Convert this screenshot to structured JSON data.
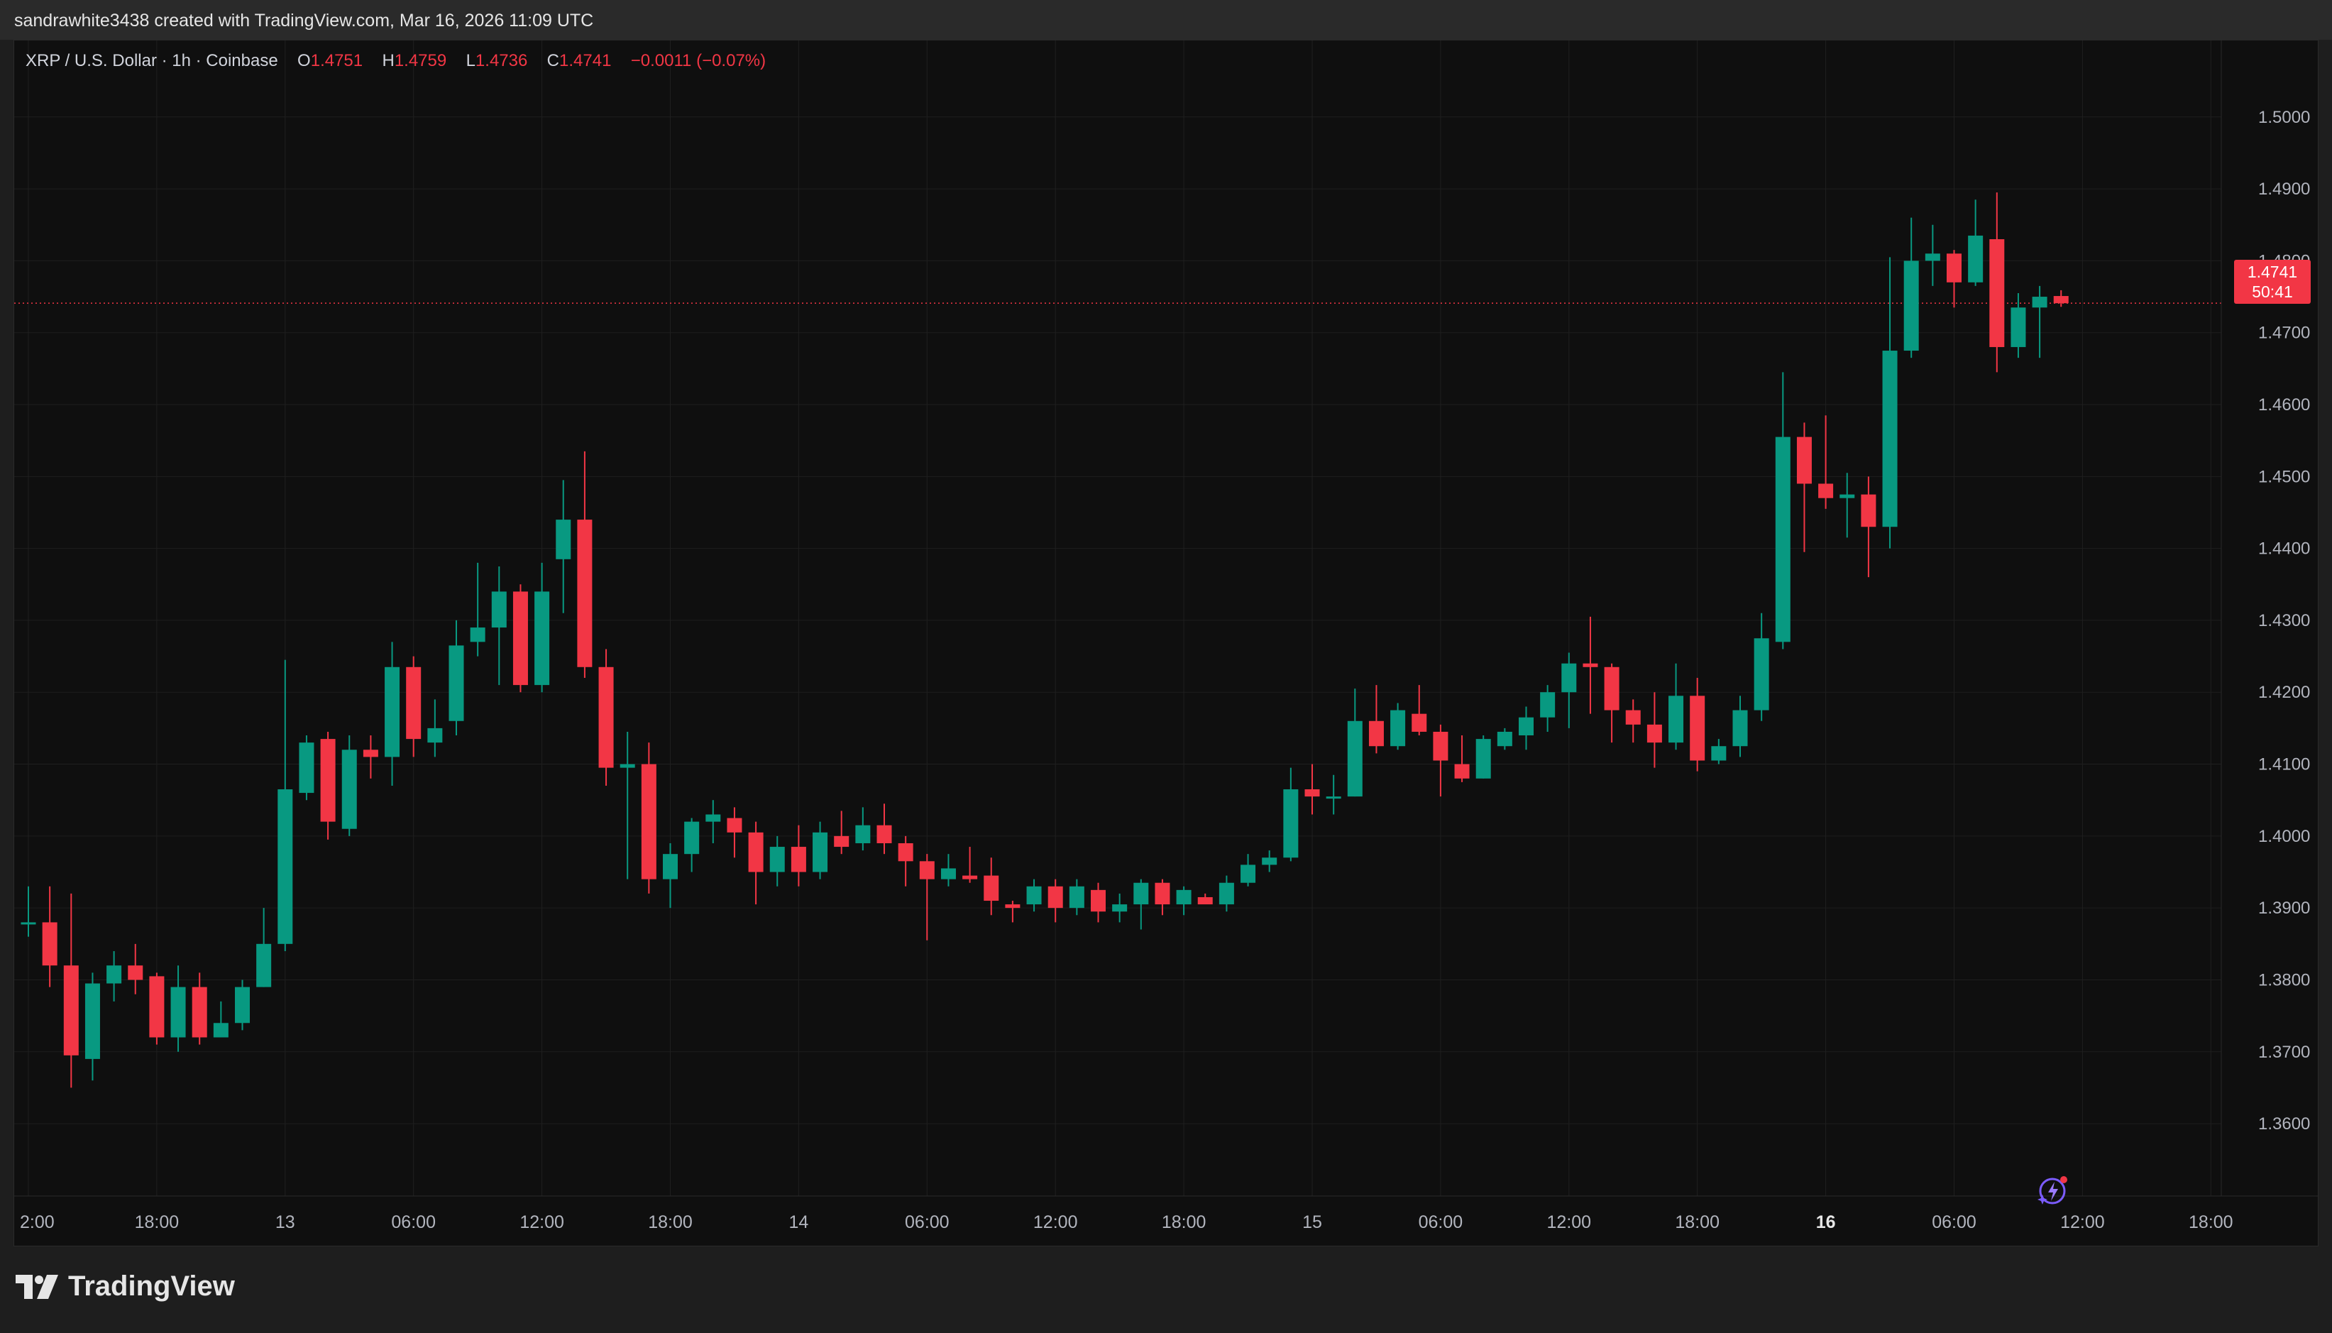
{
  "header": {
    "attribution": "sandrawhite3438 created with TradingView.com, Mar 16, 2026 11:09 UTC"
  },
  "legend": {
    "symbol": "XRP / U.S. Dollar · 1h · Coinbase",
    "open_label": "O",
    "open": "1.4751",
    "high_label": "H",
    "high": "1.4759",
    "low_label": "L",
    "low": "1.4736",
    "close_label": "C",
    "close": "1.4741",
    "change": "−0.0011 (−0.07%)"
  },
  "price_tag": {
    "price": "1.4741",
    "countdown": "50:41"
  },
  "brand": {
    "name": "TradingView"
  },
  "icons": {
    "logo": "tradingview-logo-icon",
    "bolt": "lightning-icon"
  },
  "colors": {
    "up": "#089981",
    "down": "#f23645",
    "background": "#0f0f0f",
    "grid": "#1f1f1f"
  },
  "chart_data": {
    "type": "candlestick",
    "timeframe": "1h",
    "ylim": [
      1.353,
      1.506
    ],
    "y_ticks": [
      "1.5000",
      "1.4900",
      "1.4800",
      "1.4700",
      "1.4600",
      "1.4500",
      "1.4400",
      "1.4300",
      "1.4200",
      "1.4100",
      "1.4000",
      "1.3900",
      "1.3800",
      "1.3700",
      "1.3600"
    ],
    "x_ticks": [
      {
        "label": "2:00",
        "index": 0
      },
      {
        "label": "18:00",
        "index": 6
      },
      {
        "label": "13",
        "index": 12
      },
      {
        "label": "06:00",
        "index": 18
      },
      {
        "label": "12:00",
        "index": 24
      },
      {
        "label": "18:00",
        "index": 30
      },
      {
        "label": "14",
        "index": 36
      },
      {
        "label": "06:00",
        "index": 42
      },
      {
        "label": "12:00",
        "index": 48
      },
      {
        "label": "18:00",
        "index": 54
      },
      {
        "label": "15",
        "index": 60
      },
      {
        "label": "06:00",
        "index": 66
      },
      {
        "label": "12:00",
        "index": 72
      },
      {
        "label": "18:00",
        "index": 78
      },
      {
        "label": "16",
        "index": 84
      },
      {
        "label": "06:00",
        "index": 90
      },
      {
        "label": "12:00",
        "index": 96
      },
      {
        "label": "18:00",
        "index": 102
      }
    ],
    "current_price": 1.4741,
    "ohlc": [
      [
        1.388,
        1.393,
        1.386,
        1.388
      ],
      [
        1.388,
        1.393,
        1.379,
        1.382
      ],
      [
        1.382,
        1.392,
        1.365,
        1.3695
      ],
      [
        1.369,
        1.381,
        1.366,
        1.3795
      ],
      [
        1.3795,
        1.384,
        1.377,
        1.382
      ],
      [
        1.382,
        1.385,
        1.378,
        1.38
      ],
      [
        1.3805,
        1.381,
        1.371,
        1.372
      ],
      [
        1.372,
        1.382,
        1.37,
        1.379
      ],
      [
        1.379,
        1.381,
        1.371,
        1.372
      ],
      [
        1.372,
        1.377,
        1.372,
        1.374
      ],
      [
        1.374,
        1.38,
        1.373,
        1.379
      ],
      [
        1.379,
        1.39,
        1.379,
        1.385
      ],
      [
        1.385,
        1.4245,
        1.384,
        1.4065
      ],
      [
        1.406,
        1.414,
        1.405,
        1.413
      ],
      [
        1.4135,
        1.4145,
        1.3995,
        1.402
      ],
      [
        1.401,
        1.414,
        1.4,
        1.412
      ],
      [
        1.412,
        1.414,
        1.408,
        1.411
      ],
      [
        1.411,
        1.427,
        1.407,
        1.4235
      ],
      [
        1.4235,
        1.425,
        1.411,
        1.4135
      ],
      [
        1.413,
        1.419,
        1.411,
        1.415
      ],
      [
        1.416,
        1.43,
        1.414,
        1.4265
      ],
      [
        1.427,
        1.438,
        1.425,
        1.429
      ],
      [
        1.429,
        1.4375,
        1.421,
        1.434
      ],
      [
        1.434,
        1.435,
        1.42,
        1.421
      ],
      [
        1.421,
        1.438,
        1.42,
        1.434
      ],
      [
        1.4385,
        1.4495,
        1.431,
        1.444
      ],
      [
        1.444,
        1.4535,
        1.422,
        1.4235
      ],
      [
        1.4235,
        1.426,
        1.407,
        1.4095
      ],
      [
        1.4095,
        1.4145,
        1.394,
        1.41
      ],
      [
        1.41,
        1.413,
        1.392,
        1.394
      ],
      [
        1.394,
        1.399,
        1.39,
        1.3975
      ],
      [
        1.3975,
        1.4025,
        1.395,
        1.402
      ],
      [
        1.402,
        1.405,
        1.399,
        1.403
      ],
      [
        1.4025,
        1.404,
        1.397,
        1.4005
      ],
      [
        1.4005,
        1.402,
        1.3905,
        1.395
      ],
      [
        1.395,
        1.4,
        1.393,
        1.3985
      ],
      [
        1.3985,
        1.4015,
        1.393,
        1.395
      ],
      [
        1.395,
        1.402,
        1.394,
        1.4005
      ],
      [
        1.4,
        1.4035,
        1.3975,
        1.3985
      ],
      [
        1.399,
        1.404,
        1.398,
        1.4015
      ],
      [
        1.4015,
        1.4045,
        1.3975,
        1.399
      ],
      [
        1.399,
        1.4,
        1.393,
        1.3965
      ],
      [
        1.3965,
        1.3975,
        1.3855,
        1.394
      ],
      [
        1.394,
        1.3975,
        1.393,
        1.3955
      ],
      [
        1.3945,
        1.3985,
        1.3935,
        1.394
      ],
      [
        1.3945,
        1.397,
        1.389,
        1.391
      ],
      [
        1.3905,
        1.391,
        1.388,
        1.39
      ],
      [
        1.3905,
        1.394,
        1.3895,
        1.393
      ],
      [
        1.393,
        1.394,
        1.388,
        1.39
      ],
      [
        1.39,
        1.394,
        1.389,
        1.393
      ],
      [
        1.3925,
        1.3935,
        1.388,
        1.3895
      ],
      [
        1.3895,
        1.392,
        1.388,
        1.3905
      ],
      [
        1.3905,
        1.394,
        1.387,
        1.3935
      ],
      [
        1.3935,
        1.394,
        1.389,
        1.3905
      ],
      [
        1.3905,
        1.393,
        1.389,
        1.3925
      ],
      [
        1.3915,
        1.392,
        1.391,
        1.3905
      ],
      [
        1.3905,
        1.3945,
        1.3895,
        1.3935
      ],
      [
        1.3935,
        1.3975,
        1.393,
        1.396
      ],
      [
        1.396,
        1.398,
        1.395,
        1.397
      ],
      [
        1.397,
        1.4095,
        1.3965,
        1.4065
      ],
      [
        1.4065,
        1.41,
        1.403,
        1.4055
      ],
      [
        1.4055,
        1.4085,
        1.403,
        1.4055
      ],
      [
        1.4055,
        1.4205,
        1.4055,
        1.416
      ],
      [
        1.416,
        1.421,
        1.4115,
        1.4125
      ],
      [
        1.4125,
        1.4185,
        1.412,
        1.4175
      ],
      [
        1.417,
        1.421,
        1.414,
        1.4145
      ],
      [
        1.4145,
        1.4155,
        1.4055,
        1.4105
      ],
      [
        1.41,
        1.414,
        1.4075,
        1.408
      ],
      [
        1.408,
        1.414,
        1.408,
        1.4135
      ],
      [
        1.4125,
        1.415,
        1.412,
        1.4145
      ],
      [
        1.414,
        1.418,
        1.412,
        1.4165
      ],
      [
        1.4165,
        1.421,
        1.4145,
        1.42
      ],
      [
        1.42,
        1.4255,
        1.415,
        1.424
      ],
      [
        1.424,
        1.4305,
        1.417,
        1.4235
      ],
      [
        1.4235,
        1.424,
        1.413,
        1.4175
      ],
      [
        1.4175,
        1.419,
        1.413,
        1.4155
      ],
      [
        1.4155,
        1.42,
        1.4095,
        1.413
      ],
      [
        1.413,
        1.424,
        1.412,
        1.4195
      ],
      [
        1.4195,
        1.422,
        1.409,
        1.4105
      ],
      [
        1.4105,
        1.4135,
        1.41,
        1.4125
      ],
      [
        1.4125,
        1.4195,
        1.411,
        1.4175
      ],
      [
        1.4175,
        1.431,
        1.416,
        1.4275
      ],
      [
        1.427,
        1.4645,
        1.426,
        1.4555
      ],
      [
        1.4555,
        1.4575,
        1.4395,
        1.449
      ],
      [
        1.449,
        1.4585,
        1.4455,
        1.447
      ],
      [
        1.447,
        1.4505,
        1.4415,
        1.4475
      ],
      [
        1.4475,
        1.45,
        1.436,
        1.443
      ],
      [
        1.443,
        1.4805,
        1.44,
        1.4675
      ],
      [
        1.4675,
        1.486,
        1.4665,
        1.48
      ],
      [
        1.48,
        1.485,
        1.4765,
        1.481
      ],
      [
        1.481,
        1.4815,
        1.4735,
        1.477
      ],
      [
        1.477,
        1.4885,
        1.4765,
        1.4835
      ],
      [
        1.483,
        1.4895,
        1.4645,
        1.468
      ],
      [
        1.468,
        1.4755,
        1.4665,
        1.4735
      ],
      [
        1.4735,
        1.4765,
        1.4665,
        1.475
      ],
      [
        1.4751,
        1.4759,
        1.4736,
        1.4741
      ]
    ]
  }
}
